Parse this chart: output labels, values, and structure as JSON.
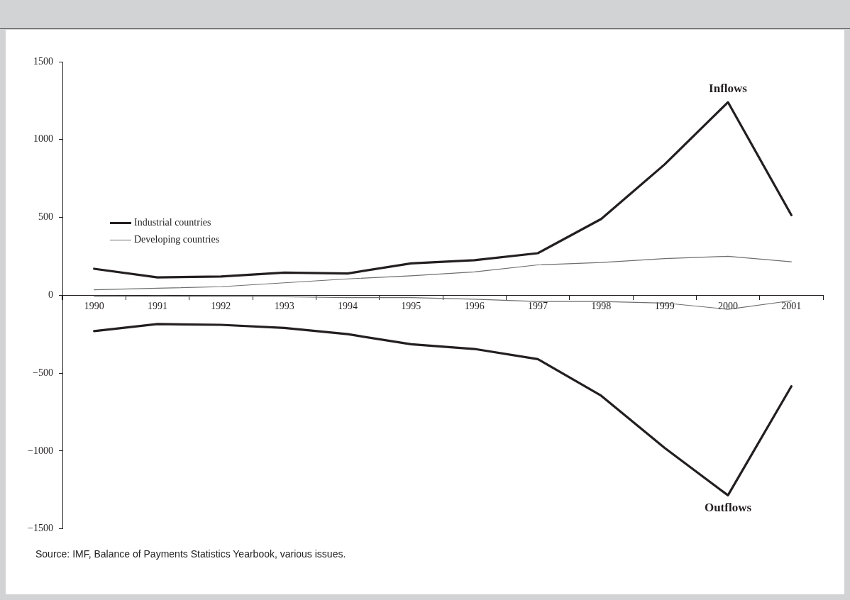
{
  "chart_data": {
    "type": "line",
    "categories": [
      "1990",
      "1991",
      "1992",
      "1993",
      "1994",
      "1995",
      "1996",
      "1997",
      "1998",
      "1999",
      "2000",
      "2001"
    ],
    "series": [
      {
        "name": "Industrial countries",
        "color": "#231f20",
        "values": [
          170,
          115,
          120,
          145,
          140,
          205,
          225,
          270,
          490,
          840,
          1240,
          515
        ]
      },
      {
        "color": "#231f20",
        "values": [
          -230,
          -185,
          -190,
          -210,
          -250,
          -315,
          -345,
          -410,
          -645,
          -980,
          -1285,
          -585
        ]
      },
      {
        "name": "Developing countries",
        "color": "#6d6e71",
        "values": [
          35,
          45,
          55,
          80,
          105,
          125,
          150,
          195,
          210,
          235,
          250,
          215
        ]
      },
      {
        "color": "#6d6e71",
        "values": [
          -10,
          -5,
          -10,
          -10,
          -15,
          -15,
          -25,
          -40,
          -40,
          -50,
          -90,
          -35
        ]
      }
    ],
    "ylim": [
      -1500,
      1500
    ],
    "yticks": [
      {
        "value": -1500,
        "label": "−1500"
      },
      {
        "value": -1000,
        "label": "−1000"
      },
      {
        "value": -500,
        "label": "−500"
      },
      0,
      500,
      1000,
      1500
    ],
    "grid": false,
    "legend": "left",
    "marker": "none",
    "line_style": "solid",
    "annotations": [
      {
        "text": "Inflows",
        "x": "2000",
        "y": 1240
      },
      {
        "text": "Outflows",
        "x": "2000",
        "y": -1285
      },
      "Source: IMF, Balance of Payments Statistics Yearbook, various issues."
    ]
  }
}
